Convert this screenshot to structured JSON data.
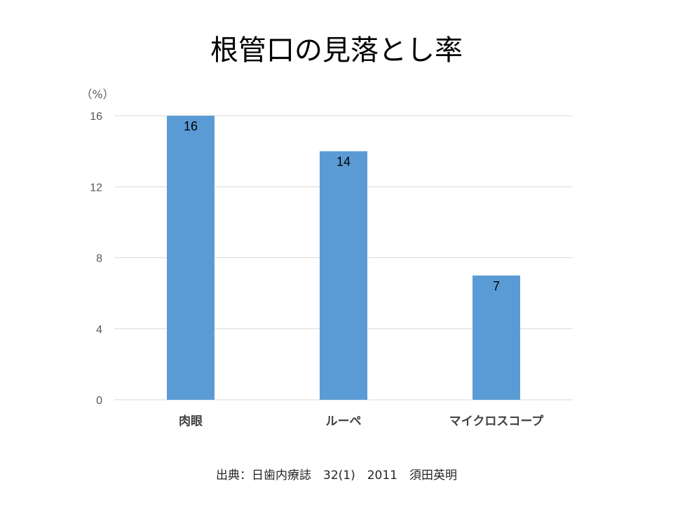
{
  "slide": {
    "title": "根管口の見落とし率",
    "source": "出典：日歯内療誌　32(1)　2011　須田英明"
  },
  "colors": {
    "bar": "#5b9bd5",
    "grid": "#d9d9d9",
    "tick_text": "#595959",
    "category_text": "#404040",
    "data_label": "#000000"
  },
  "chart_data": {
    "type": "bar",
    "title": "根管口の見落とし率",
    "xlabel": "",
    "ylabel": "（%）",
    "categories": [
      "肉眼",
      "ルーペ",
      "マイクロスコープ"
    ],
    "values": [
      16,
      14,
      7
    ],
    "data_labels": [
      "16",
      "14",
      "7"
    ],
    "ylim": [
      0,
      16
    ],
    "yticks": [
      0,
      4,
      8,
      12,
      16
    ],
    "grid": true,
    "legend": "none"
  }
}
